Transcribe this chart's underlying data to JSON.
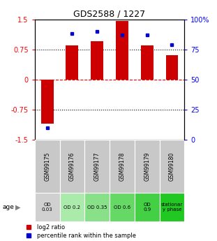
{
  "title": "GDS2588 / 1227",
  "samples": [
    "GSM99175",
    "GSM99176",
    "GSM99177",
    "GSM99178",
    "GSM99179",
    "GSM99180"
  ],
  "log2_ratio": [
    -1.1,
    0.85,
    0.95,
    1.45,
    0.85,
    0.6
  ],
  "percentile_rank": [
    10,
    88,
    90,
    87,
    87,
    79
  ],
  "ylim": [
    -1.5,
    1.5
  ],
  "yticks_left": [
    -1.5,
    -0.75,
    0,
    0.75,
    1.5
  ],
  "yticks_right": [
    0,
    25,
    50,
    75,
    100
  ],
  "bar_color": "#cc0000",
  "dot_color": "#0000cc",
  "age_labels": [
    "OD\n0.03",
    "OD 0.2",
    "OD 0.35",
    "OD 0.6",
    "OD\n0.9",
    "stationar\ny phase"
  ],
  "age_bg_colors": [
    "#d0d0d0",
    "#aaeaaa",
    "#88e088",
    "#66d866",
    "#44d044",
    "#22c822"
  ],
  "sample_bg_color": "#c8c8c8",
  "legend_red": "log2 ratio",
  "legend_blue": "percentile rank within the sample"
}
